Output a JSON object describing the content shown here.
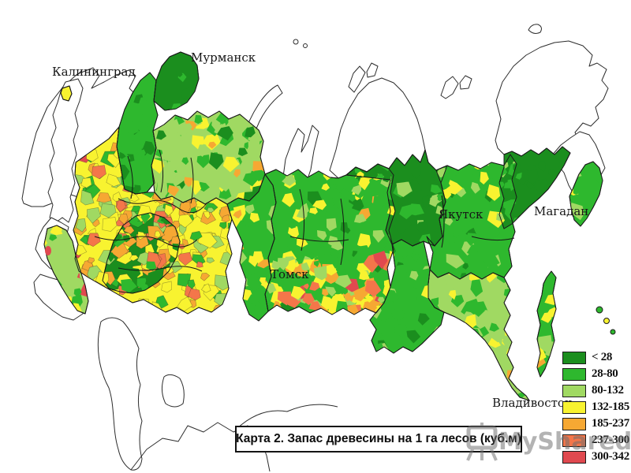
{
  "map": {
    "cities": [
      {
        "name": "Калининград"
      },
      {
        "name": "Мурманск"
      },
      {
        "name": "Якутск"
      },
      {
        "name": "Магадан"
      },
      {
        "name": "Томск"
      },
      {
        "name": "Владивосток"
      }
    ]
  },
  "legend": {
    "items": [
      {
        "label": "< 28",
        "color": "#1b8e1e"
      },
      {
        "label": "28-80",
        "color": "#2eb82e"
      },
      {
        "label": "80-132",
        "color": "#a0d962"
      },
      {
        "label": "132-185",
        "color": "#f8f330"
      },
      {
        "label": "185-237",
        "color": "#f6a833"
      },
      {
        "label": "237-300",
        "color": "#f4764a"
      },
      {
        "label": "300-342",
        "color": "#e0494f"
      }
    ]
  },
  "caption": {
    "title": "Карта 2. Запас древесины на 1 га лесов (куб.м)"
  },
  "watermark": {
    "text": "MyShared"
  }
}
